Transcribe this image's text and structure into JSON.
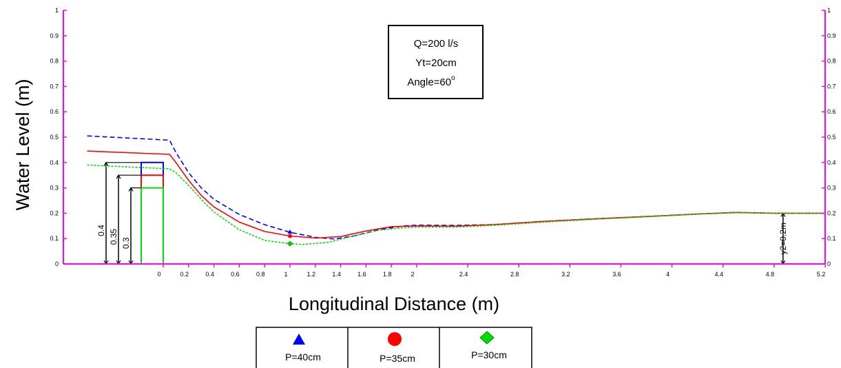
{
  "chart_data": {
    "type": "line",
    "xlabel": "Longitudinal Distance (m)",
    "ylabel": "Water Level  (m)",
    "xlim": [
      -0.8,
      5.2
    ],
    "ylim": [
      0,
      1
    ],
    "x_ticks": [
      "0",
      "0.2",
      "0.4",
      "0.6",
      "0.8",
      "1",
      "1.2",
      "1.4",
      "1.6",
      "1.8",
      "2",
      "2.4",
      "2.8",
      "3.2",
      "3.6",
      "4",
      "4.4",
      "4.8",
      "5.2"
    ],
    "y_ticks": [
      "0",
      "0.1",
      "0.2",
      "0.3",
      "0.4",
      "0.5",
      "0.6",
      "0.7",
      "0.8",
      "0.9",
      "1"
    ],
    "annotation": [
      "Q=200 l/s",
      "Yt=20cm",
      "Angle=60",
      "o"
    ],
    "weir_labels": [
      "0.4",
      "0.35",
      "0.3"
    ],
    "tailwater_label": "y2=0.2m",
    "colors": {
      "axis": "#ff00ff",
      "p40": "#0000ff",
      "p35": "#ff0000",
      "p30": "#00dd00"
    },
    "series": [
      {
        "name": "P=40cm",
        "color": "#0000ff",
        "dash": "dashed",
        "marker": "triangle",
        "weir_height": 0.4,
        "marker_point": [
          1.0,
          0.125
        ],
        "points": [
          [
            -0.6,
            0.505
          ],
          [
            0.05,
            0.488
          ],
          [
            0.1,
            0.44
          ],
          [
            0.2,
            0.36
          ],
          [
            0.3,
            0.3
          ],
          [
            0.4,
            0.255
          ],
          [
            0.6,
            0.195
          ],
          [
            0.8,
            0.155
          ],
          [
            1.0,
            0.125
          ],
          [
            1.2,
            0.105
          ],
          [
            1.35,
            0.098
          ],
          [
            1.5,
            0.11
          ],
          [
            1.7,
            0.135
          ],
          [
            1.9,
            0.15
          ],
          [
            2.0,
            0.153
          ],
          [
            2.3,
            0.152
          ],
          [
            2.6,
            0.155
          ],
          [
            3.0,
            0.168
          ],
          [
            3.4,
            0.178
          ],
          [
            3.8,
            0.187
          ],
          [
            4.2,
            0.197
          ],
          [
            4.5,
            0.203
          ],
          [
            4.8,
            0.2
          ],
          [
            5.2,
            0.2
          ]
        ]
      },
      {
        "name": "P=35cm",
        "color": "#ff0000",
        "dash": "solid",
        "marker": "circle",
        "weir_height": 0.35,
        "marker_point": [
          1.0,
          0.11
        ],
        "points": [
          [
            -0.6,
            0.445
          ],
          [
            0.05,
            0.432
          ],
          [
            0.1,
            0.4
          ],
          [
            0.2,
            0.33
          ],
          [
            0.3,
            0.27
          ],
          [
            0.4,
            0.225
          ],
          [
            0.6,
            0.165
          ],
          [
            0.8,
            0.128
          ],
          [
            1.0,
            0.11
          ],
          [
            1.2,
            0.102
          ],
          [
            1.4,
            0.108
          ],
          [
            1.6,
            0.13
          ],
          [
            1.8,
            0.147
          ],
          [
            2.0,
            0.15
          ],
          [
            2.3,
            0.149
          ],
          [
            2.6,
            0.155
          ],
          [
            3.0,
            0.168
          ],
          [
            3.4,
            0.178
          ],
          [
            3.8,
            0.187
          ],
          [
            4.2,
            0.197
          ],
          [
            4.5,
            0.203
          ],
          [
            4.8,
            0.2
          ],
          [
            5.2,
            0.2
          ]
        ]
      },
      {
        "name": "P=30cm",
        "color": "#00dd00",
        "dash": "dotted",
        "marker": "diamond",
        "weir_height": 0.3,
        "marker_point": [
          1.0,
          0.08
        ],
        "points": [
          [
            -0.6,
            0.39
          ],
          [
            0.05,
            0.375
          ],
          [
            0.1,
            0.36
          ],
          [
            0.2,
            0.31
          ],
          [
            0.3,
            0.255
          ],
          [
            0.4,
            0.205
          ],
          [
            0.6,
            0.135
          ],
          [
            0.8,
            0.093
          ],
          [
            1.0,
            0.08
          ],
          [
            1.1,
            0.077
          ],
          [
            1.3,
            0.085
          ],
          [
            1.5,
            0.11
          ],
          [
            1.7,
            0.133
          ],
          [
            1.9,
            0.143
          ],
          [
            2.0,
            0.145
          ],
          [
            2.3,
            0.145
          ],
          [
            2.6,
            0.152
          ],
          [
            3.0,
            0.165
          ],
          [
            3.4,
            0.176
          ],
          [
            3.8,
            0.186
          ],
          [
            4.2,
            0.196
          ],
          [
            4.5,
            0.202
          ],
          [
            4.8,
            0.2
          ],
          [
            5.2,
            0.2
          ]
        ]
      }
    ],
    "legend": {
      "placement": "bottom-center",
      "items": [
        {
          "label": "P=40cm",
          "marker": "triangle",
          "color": "#0000ff"
        },
        {
          "label": "P=35cm",
          "marker": "circle",
          "color": "#ff0000"
        },
        {
          "label": "P=30cm",
          "marker": "diamond",
          "color": "#00dd00"
        }
      ]
    }
  }
}
